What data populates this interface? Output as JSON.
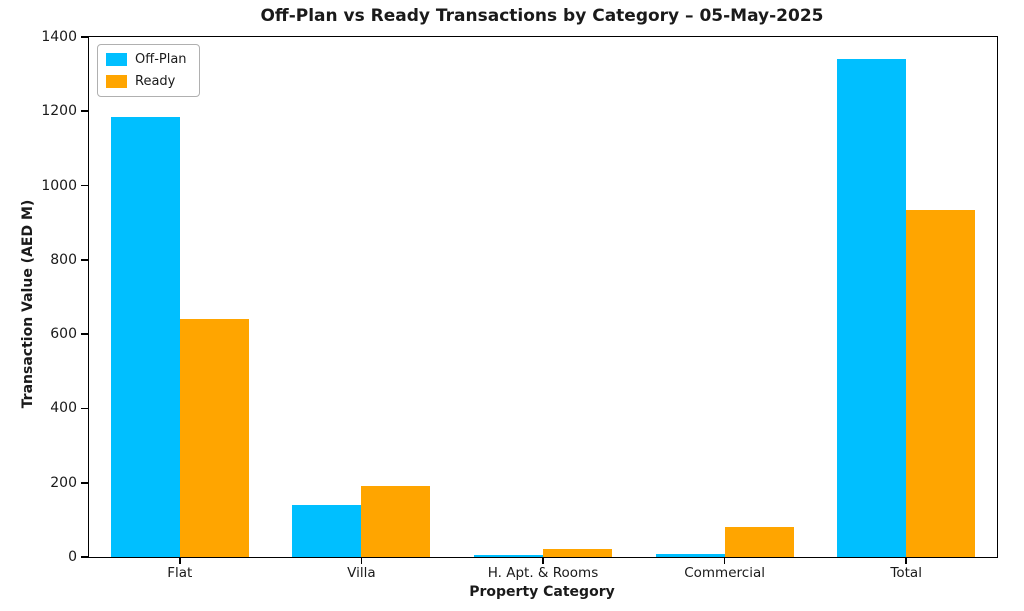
{
  "chart_data": {
    "type": "bar",
    "title": "Off-Plan vs Ready Transactions by Category – 05-May-2025",
    "xlabel": "Property Category",
    "ylabel": "Transaction Value (AED M)",
    "categories": [
      "Flat",
      "Villa",
      "H. Apt. & Rooms",
      "Commercial",
      "Total"
    ],
    "series": [
      {
        "name": "Off-Plan",
        "color": "#00BFFF",
        "values": [
          1185,
          140,
          5,
          8,
          1340
        ]
      },
      {
        "name": "Ready",
        "color": "#FFA500",
        "values": [
          640,
          190,
          22,
          80,
          935
        ]
      }
    ],
    "ylim": [
      0,
      1400
    ],
    "ytick_step": 200,
    "yticks": [
      0,
      200,
      400,
      600,
      800,
      1000,
      1200,
      1400
    ],
    "grid": false,
    "legend_position": "upper left",
    "bar_width_fraction": 0.38
  }
}
